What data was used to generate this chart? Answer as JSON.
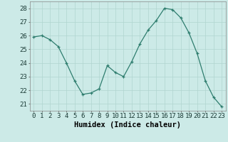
{
  "x": [
    0,
    1,
    2,
    3,
    4,
    5,
    6,
    7,
    8,
    9,
    10,
    11,
    12,
    13,
    14,
    15,
    16,
    17,
    18,
    19,
    20,
    21,
    22,
    23
  ],
  "y": [
    25.9,
    26.0,
    25.7,
    25.2,
    24.0,
    22.7,
    21.7,
    21.8,
    22.1,
    23.8,
    23.3,
    23.0,
    24.1,
    25.4,
    26.4,
    27.1,
    28.0,
    27.9,
    27.3,
    26.2,
    24.7,
    22.7,
    21.5,
    20.8
  ],
  "line_color": "#2e7d6e",
  "marker_color": "#2e7d6e",
  "bg_color": "#cceae7",
  "grid_color": "#b0d5d0",
  "xlabel": "Humidex (Indice chaleur)",
  "ylim": [
    20.5,
    28.5
  ],
  "yticks": [
    21,
    22,
    23,
    24,
    25,
    26,
    27,
    28
  ],
  "tick_fontsize": 6.5,
  "label_fontsize": 7.5
}
